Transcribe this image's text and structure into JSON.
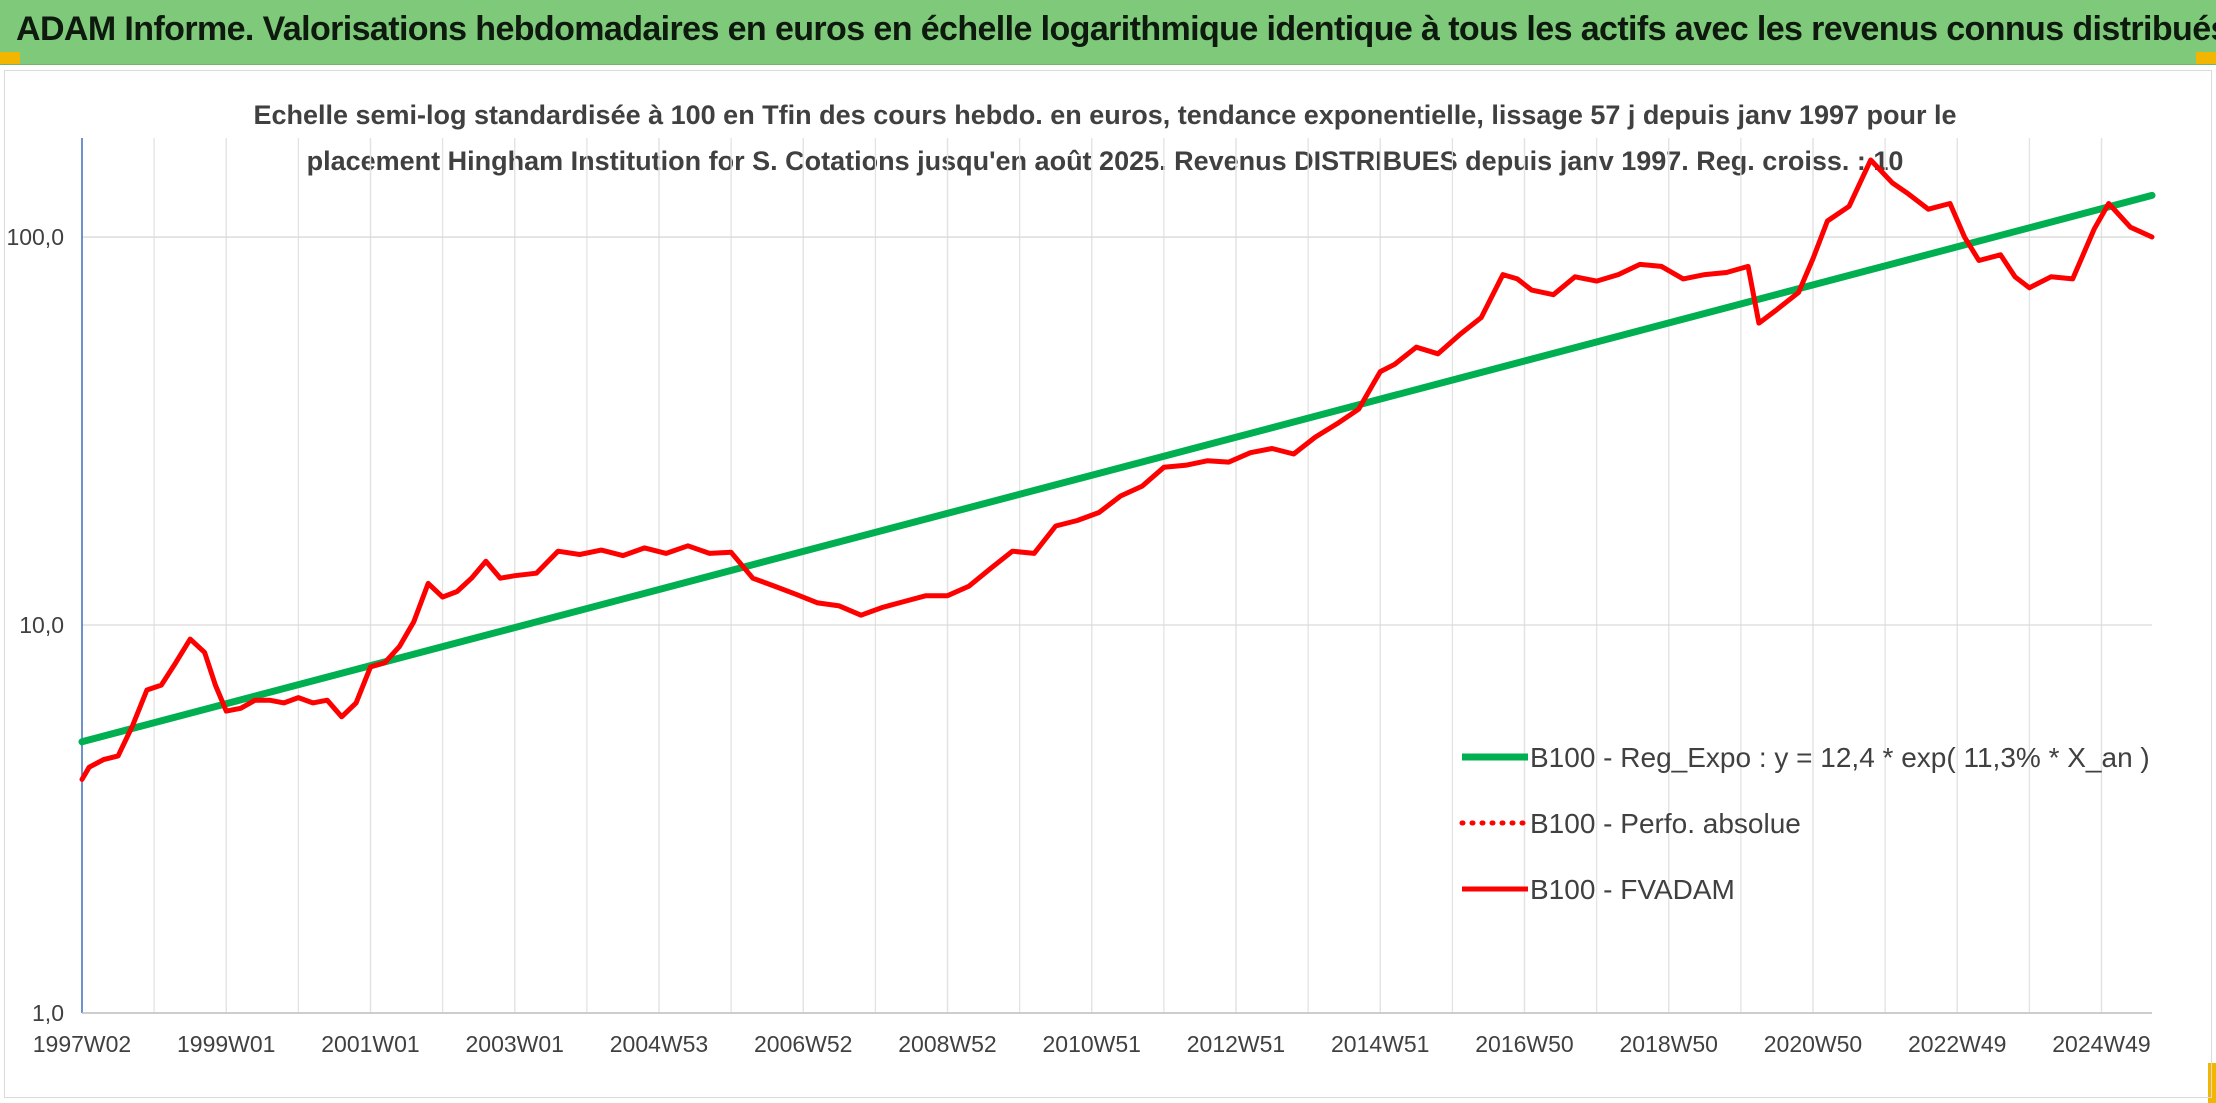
{
  "header": {
    "title": "ADAM Informe. Valorisations hebdomadaires en euros en échelle logarithmique identique à tous les actifs avec les revenus connus distribués"
  },
  "chart_data": {
    "type": "line",
    "title": "",
    "subtitle_lines": [
      "Echelle semi-log standardisée à 100 en Tfin des cours hebdo. en euros, tendance exponentielle, lissage 57 j depuis janv 1997 pour le",
      "placement Hingham Institution for S. Cotations jusqu'en août 2025. Revenus DISTRIBUES depuis janv 1997. Reg. croiss. : 10"
    ],
    "xlabel": "",
    "ylabel": "",
    "y_scale": "log",
    "ylim": [
      1,
      180
    ],
    "xlim": [
      1997.0,
      2025.7
    ],
    "grid": true,
    "legend_position": "bottom-right",
    "y_ticks": [
      {
        "value": 1,
        "label": "1,0"
      },
      {
        "value": 10,
        "label": "10,0"
      },
      {
        "value": 100,
        "label": "100,0"
      }
    ],
    "x_ticks": [
      {
        "value": 1997.0,
        "label": "1997W02"
      },
      {
        "value": 1999.0,
        "label": "1999W01"
      },
      {
        "value": 2001.0,
        "label": "2001W01"
      },
      {
        "value": 2003.0,
        "label": "2003W01"
      },
      {
        "value": 2005.0,
        "label": "2004W53"
      },
      {
        "value": 2007.0,
        "label": "2006W52"
      },
      {
        "value": 2009.0,
        "label": "2008W52"
      },
      {
        "value": 2011.0,
        "label": "2010W51"
      },
      {
        "value": 2013.0,
        "label": "2012W51"
      },
      {
        "value": 2015.0,
        "label": "2014W51"
      },
      {
        "value": 2017.0,
        "label": "2016W50"
      },
      {
        "value": 2019.0,
        "label": "2018W50"
      },
      {
        "value": 2021.0,
        "label": "2020W50"
      },
      {
        "value": 2023.0,
        "label": "2022W49"
      },
      {
        "value": 2025.0,
        "label": "2024W49"
      }
    ],
    "series": [
      {
        "name": "B100 - Reg_Expo : y = 12,4 * exp( 11,3% *  X_an )",
        "color": "#00b050",
        "style": "solid",
        "x": [
          1997.0,
          2025.7
        ],
        "y": [
          5.0,
          128
        ]
      },
      {
        "name": "B100 - Perfo. absolue",
        "color": "#ff0000",
        "style": "dotted",
        "x": [],
        "y": []
      },
      {
        "name": "B100 - FVADAM",
        "color": "#ff0000",
        "style": "solid",
        "x": [
          1997.0,
          1997.1,
          1997.3,
          1997.5,
          1997.7,
          1997.9,
          1998.1,
          1998.3,
          1998.5,
          1998.7,
          1998.85,
          1999.0,
          1999.2,
          1999.4,
          1999.6,
          1999.8,
          2000.0,
          2000.2,
          2000.4,
          2000.6,
          2000.8,
          2001.0,
          2001.2,
          2001.4,
          2001.6,
          2001.8,
          2002.0,
          2002.2,
          2002.4,
          2002.6,
          2002.8,
          2003.0,
          2003.3,
          2003.6,
          2003.9,
          2004.2,
          2004.5,
          2004.8,
          2005.1,
          2005.4,
          2005.7,
          2006.0,
          2006.3,
          2006.6,
          2006.9,
          2007.2,
          2007.5,
          2007.8,
          2008.1,
          2008.4,
          2008.7,
          2009.0,
          2009.3,
          2009.6,
          2009.9,
          2010.2,
          2010.5,
          2010.8,
          2011.1,
          2011.4,
          2011.7,
          2012.0,
          2012.3,
          2012.6,
          2012.9,
          2013.2,
          2013.5,
          2013.8,
          2014.1,
          2014.4,
          2014.7,
          2015.0,
          2015.2,
          2015.5,
          2015.8,
          2016.1,
          2016.4,
          2016.7,
          2016.9,
          2017.1,
          2017.4,
          2017.7,
          2018.0,
          2018.3,
          2018.6,
          2018.9,
          2019.2,
          2019.5,
          2019.8,
          2020.1,
          2020.25,
          2020.5,
          2020.8,
          2021.0,
          2021.2,
          2021.5,
          2021.8,
          2022.1,
          2022.3,
          2022.6,
          2022.9,
          2023.1,
          2023.3,
          2023.6,
          2023.8,
          2024.0,
          2024.3,
          2024.6,
          2024.9,
          2025.1,
          2025.4,
          2025.7
        ],
        "y": [
          4.0,
          4.3,
          4.5,
          4.6,
          5.5,
          6.8,
          7.0,
          8.0,
          9.2,
          8.5,
          7.0,
          6.0,
          6.1,
          6.4,
          6.4,
          6.3,
          6.5,
          6.3,
          6.4,
          5.8,
          6.3,
          7.8,
          8.0,
          8.8,
          10.2,
          12.8,
          11.8,
          12.2,
          13.2,
          14.6,
          13.2,
          13.4,
          13.6,
          15.5,
          15.2,
          15.6,
          15.1,
          15.8,
          15.3,
          16.0,
          15.3,
          15.4,
          13.2,
          12.6,
          12.0,
          11.4,
          11.2,
          10.6,
          11.1,
          11.5,
          11.9,
          11.9,
          12.6,
          14.0,
          15.5,
          15.3,
          18.0,
          18.6,
          19.5,
          21.5,
          22.8,
          25.5,
          25.8,
          26.5,
          26.3,
          27.8,
          28.5,
          27.6,
          30.5,
          33.0,
          36.0,
          45.0,
          47.0,
          52.0,
          50.0,
          56.0,
          62.0,
          80.0,
          78.0,
          73.0,
          71.0,
          79.0,
          77.0,
          80.0,
          85.0,
          84.0,
          78.0,
          80.0,
          81.0,
          84.0,
          60.0,
          65.0,
          72.0,
          88.0,
          110.0,
          120.0,
          158.0,
          138.0,
          130.0,
          118.0,
          122.0,
          100.0,
          87.0,
          90.0,
          79.0,
          74.0,
          79.0,
          78.0,
          105.0,
          122.0,
          106.0,
          100.0
        ]
      }
    ]
  }
}
